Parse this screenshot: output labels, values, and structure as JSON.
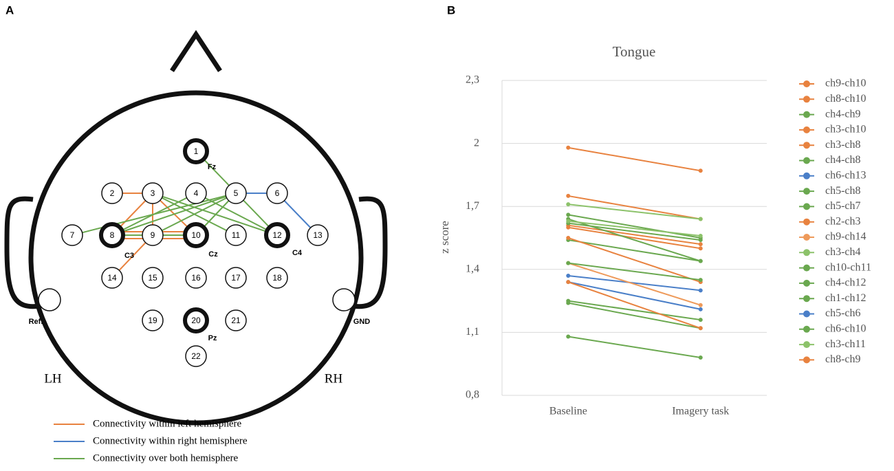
{
  "panels": [
    "A",
    "B"
  ],
  "diagram": {
    "nodes": [
      "1",
      "2",
      "3",
      "4",
      "5",
      "6",
      "7",
      "8",
      "9",
      "10",
      "11",
      "12",
      "13",
      "14",
      "15",
      "16",
      "17",
      "18",
      "19",
      "20",
      "21",
      "22"
    ],
    "site_labels": [
      "Fz",
      "C3",
      "Cz",
      "C4",
      "Pz"
    ],
    "reference_labels": [
      "Ref.",
      "GND"
    ],
    "hemisphere_labels": [
      "LH",
      "RH"
    ],
    "legend": [
      {
        "label": "Connectivity within left hemisphere",
        "color": "#e8823f"
      },
      {
        "label": "Connectivity within right hemisphere",
        "color": "#4a7fc8"
      },
      {
        "label": "Connectivity over both hemisphere",
        "color": "#6aa84f"
      }
    ]
  },
  "chart_data": {
    "type": "line",
    "title": "Tongue",
    "y_label": "z score",
    "categories": [
      "Baseline",
      "Imagery task"
    ],
    "ylim": [
      0.8,
      2.3
    ],
    "yticks": [
      {
        "value": 0.8,
        "label": "0,8"
      },
      {
        "value": 1.1,
        "label": "1,1"
      },
      {
        "value": 1.4,
        "label": "1,4"
      },
      {
        "value": 1.7,
        "label": "1,7"
      },
      2,
      {
        "value": 2.3,
        "label": "2,3"
      }
    ],
    "grid": true,
    "series": [
      {
        "name": "ch9-ch10",
        "color": "#e8823f",
        "values": [
          1.98,
          1.87
        ]
      },
      {
        "name": "ch8-ch10",
        "color": "#e8823f",
        "values": [
          1.75,
          1.64
        ]
      },
      {
        "name": "ch4-ch9",
        "color": "#6aa84f",
        "values": [
          1.66,
          1.55
        ]
      },
      {
        "name": "ch3-ch10",
        "color": "#e8823f",
        "values": [
          1.61,
          1.52
        ]
      },
      {
        "name": "ch3-ch8",
        "color": "#e8823f",
        "values": [
          1.6,
          1.5
        ]
      },
      {
        "name": "ch4-ch8",
        "color": "#6aa84f",
        "values": [
          1.64,
          1.44
        ]
      },
      {
        "name": "ch6-ch13",
        "color": "#4a7fc8",
        "values": [
          1.37,
          1.3
        ]
      },
      {
        "name": "ch5-ch8",
        "color": "#6aa84f",
        "values": [
          1.62,
          1.54
        ]
      },
      {
        "name": "ch5-ch7",
        "color": "#6aa84f",
        "values": [
          1.54,
          1.44
        ]
      },
      {
        "name": "ch2-ch3",
        "color": "#e8823f",
        "values": [
          1.55,
          1.34
        ]
      },
      {
        "name": "ch9-ch14",
        "color": "#ee9a5a",
        "values": [
          1.43,
          1.23
        ]
      },
      {
        "name": "ch3-ch4",
        "color": "#8cc26a",
        "values": [
          1.71,
          1.64
        ]
      },
      {
        "name": "ch10-ch11",
        "color": "#6aa84f",
        "values": [
          1.43,
          1.35
        ]
      },
      {
        "name": "ch4-ch12",
        "color": "#6aa84f",
        "values": [
          1.25,
          1.16
        ]
      },
      {
        "name": "ch1-ch12",
        "color": "#6aa84f",
        "values": [
          1.24,
          1.12
        ]
      },
      {
        "name": "ch5-ch6",
        "color": "#4a7fc8",
        "values": [
          1.34,
          1.21
        ]
      },
      {
        "name": "ch6-ch10",
        "color": "#6aa84f",
        "values": [
          1.08,
          0.98
        ]
      },
      {
        "name": "ch3-ch11",
        "color": "#8cc26a",
        "values": [
          1.63,
          1.56
        ]
      },
      {
        "name": "ch8-ch9",
        "color": "#e8823f",
        "values": [
          1.34,
          1.12
        ]
      }
    ]
  }
}
